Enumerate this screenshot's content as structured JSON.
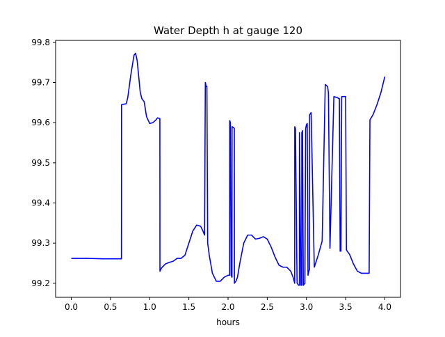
{
  "chart_data": {
    "type": "line",
    "title": "Water Depth h at gauge 120",
    "xlabel": "hours",
    "ylabel": "",
    "xlim": [
      -0.2,
      4.2
    ],
    "ylim": [
      99.165,
      99.805
    ],
    "xticks": [
      0.0,
      0.5,
      1.0,
      1.5,
      2.0,
      2.5,
      3.0,
      3.5,
      4.0
    ],
    "xtick_labels": [
      "0.0",
      "0.5",
      "1.0",
      "1.5",
      "2.0",
      "2.5",
      "3.0",
      "3.5",
      "4.0"
    ],
    "yticks": [
      99.2,
      99.3,
      99.4,
      99.5,
      99.6,
      99.7,
      99.8
    ],
    "ytick_labels": [
      "99.2",
      "99.3",
      "99.4",
      "99.5",
      "99.6",
      "99.7",
      "99.8"
    ],
    "grid": false,
    "line_color": "#0000ff",
    "series": [
      {
        "name": "",
        "x": [
          0.0,
          0.2,
          0.4,
          0.64,
          0.641,
          0.7,
          0.72,
          0.76,
          0.8,
          0.82,
          0.84,
          0.88,
          0.9,
          0.93,
          0.96,
          1.0,
          1.04,
          1.08,
          1.1,
          1.13,
          1.131,
          1.15,
          1.2,
          1.25,
          1.3,
          1.35,
          1.4,
          1.45,
          1.5,
          1.55,
          1.6,
          1.65,
          1.68,
          1.7,
          1.71,
          1.711,
          1.72,
          1.73,
          1.74,
          1.76,
          1.8,
          1.85,
          1.9,
          1.95,
          2.0,
          2.02,
          2.021,
          2.03,
          2.04,
          2.05,
          2.051,
          2.07,
          2.08,
          2.081,
          2.1,
          2.12,
          2.15,
          2.2,
          2.25,
          2.3,
          2.35,
          2.4,
          2.45,
          2.5,
          2.55,
          2.6,
          2.65,
          2.7,
          2.75,
          2.8,
          2.83,
          2.85,
          2.851,
          2.86,
          2.88,
          2.881,
          2.9,
          2.91,
          2.911,
          2.93,
          2.94,
          2.941,
          2.95,
          2.96,
          2.98,
          2.99,
          3.0,
          3.01,
          3.02,
          3.03,
          3.04,
          3.041,
          3.06,
          3.1,
          3.15,
          3.2,
          3.201,
          3.24,
          3.27,
          3.28,
          3.281,
          3.3,
          3.35,
          3.4,
          3.41,
          3.42,
          3.43,
          3.44,
          3.45,
          3.46,
          3.5,
          3.51,
          3.52,
          3.55,
          3.6,
          3.65,
          3.7,
          3.8,
          3.81,
          3.85,
          3.9,
          3.95,
          4.0
        ],
        "y": [
          99.262,
          99.262,
          99.261,
          99.261,
          99.645,
          99.647,
          99.662,
          99.72,
          99.768,
          99.773,
          99.755,
          99.675,
          99.66,
          99.652,
          99.615,
          99.598,
          99.6,
          99.607,
          99.612,
          99.61,
          99.23,
          99.238,
          99.248,
          99.252,
          99.255,
          99.262,
          99.262,
          99.27,
          99.3,
          99.33,
          99.345,
          99.342,
          99.33,
          99.32,
          99.7,
          99.7,
          99.69,
          99.69,
          99.3,
          99.27,
          99.225,
          99.205,
          99.205,
          99.215,
          99.22,
          99.22,
          99.605,
          99.6,
          99.22,
          99.215,
          99.59,
          99.588,
          99.585,
          99.2,
          99.205,
          99.215,
          99.25,
          99.3,
          99.32,
          99.32,
          99.31,
          99.312,
          99.316,
          99.31,
          99.29,
          99.265,
          99.245,
          99.24,
          99.24,
          99.23,
          99.215,
          99.2,
          99.59,
          99.585,
          99.21,
          99.2,
          99.195,
          99.195,
          99.575,
          99.195,
          99.195,
          99.575,
          99.58,
          99.195,
          99.2,
          99.585,
          99.595,
          99.598,
          99.22,
          99.23,
          99.235,
          99.62,
          99.625,
          99.24,
          99.27,
          99.305,
          99.31,
          99.695,
          99.69,
          99.675,
          99.665,
          99.287,
          99.665,
          99.662,
          99.66,
          99.66,
          99.28,
          99.28,
          99.665,
          99.665,
          99.665,
          99.283,
          99.28,
          99.272,
          99.248,
          99.23,
          99.225,
          99.225,
          99.607,
          99.62,
          99.645,
          99.675,
          99.715
        ]
      }
    ]
  }
}
